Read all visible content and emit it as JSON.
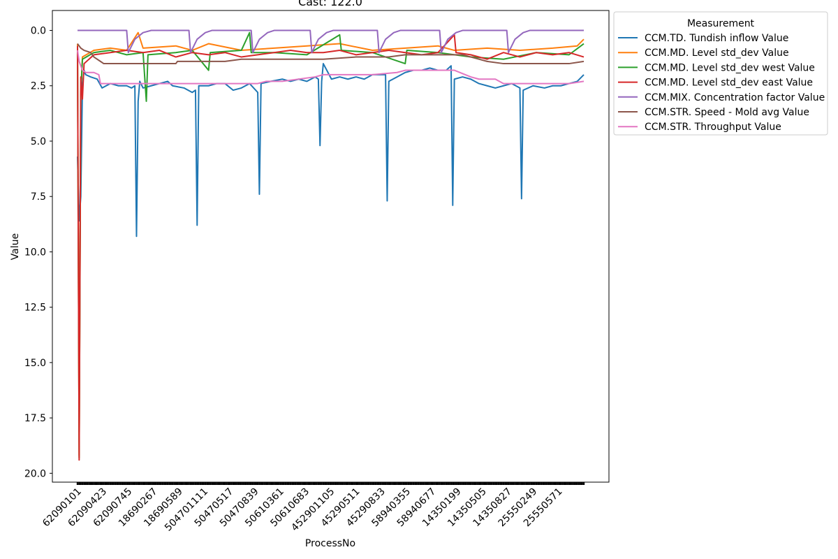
{
  "chart_data": {
    "type": "line",
    "title": "Cast: 122.0",
    "xlabel": "ProcessNo",
    "ylabel": "Value",
    "y_inverted": true,
    "ylim": [
      20.4,
      -0.9
    ],
    "yticks": [
      0.0,
      2.5,
      5.0,
      7.5,
      10.0,
      12.5,
      15.0,
      17.5,
      20.0
    ],
    "ytick_labels": [
      "0.0",
      "2.5",
      "5.0",
      "7.5",
      "10.0",
      "12.5",
      "15.0",
      "17.5",
      "20.0"
    ],
    "xtick_labels": [
      "62090101",
      "62090423",
      "62090745",
      "18690267",
      "18690589",
      "504701111",
      "50470517",
      "50470839",
      "50610361",
      "50610683",
      "452901105",
      "45290511",
      "45290833",
      "58940355",
      "58940677",
      "14350199",
      "14350505",
      "14350827",
      "25550249",
      "25550571"
    ],
    "legend": {
      "title": "Measurement",
      "placement": "outside-right-top"
    },
    "grid": false,
    "series": [
      {
        "name": "CCM.TD. Tundish inflow Value",
        "color": "#1f77b4",
        "points": [
          [
            0,
            5.7
          ],
          [
            1,
            8.6
          ],
          [
            2,
            7.5
          ],
          [
            3,
            2.5
          ],
          [
            4,
            1.8
          ],
          [
            5,
            2.0
          ],
          [
            8,
            2.1
          ],
          [
            12,
            2.2
          ],
          [
            15,
            2.6
          ],
          [
            20,
            2.4
          ],
          [
            25,
            2.5
          ],
          [
            30,
            2.5
          ],
          [
            33,
            2.6
          ],
          [
            35,
            2.5
          ],
          [
            36,
            9.3
          ],
          [
            37,
            3.2
          ],
          [
            38,
            2.3
          ],
          [
            40,
            2.6
          ],
          [
            45,
            2.5
          ],
          [
            50,
            2.4
          ],
          [
            55,
            2.3
          ],
          [
            58,
            2.5
          ],
          [
            65,
            2.6
          ],
          [
            70,
            2.8
          ],
          [
            72,
            2.7
          ],
          [
            73,
            8.8
          ],
          [
            74,
            2.5
          ],
          [
            80,
            2.5
          ],
          [
            85,
            2.4
          ],
          [
            90,
            2.4
          ],
          [
            95,
            2.7
          ],
          [
            100,
            2.6
          ],
          [
            105,
            2.4
          ],
          [
            110,
            2.8
          ],
          [
            111,
            7.4
          ],
          [
            112,
            2.4
          ],
          [
            118,
            2.3
          ],
          [
            125,
            2.2
          ],
          [
            130,
            2.3
          ],
          [
            135,
            2.2
          ],
          [
            140,
            2.3
          ],
          [
            145,
            2.1
          ],
          [
            147,
            2.2
          ],
          [
            148,
            5.2
          ],
          [
            149,
            2.3
          ],
          [
            150,
            1.5
          ],
          [
            155,
            2.2
          ],
          [
            160,
            2.1
          ],
          [
            165,
            2.2
          ],
          [
            170,
            2.1
          ],
          [
            175,
            2.2
          ],
          [
            180,
            2.0
          ],
          [
            185,
            2.0
          ],
          [
            188,
            2.0
          ],
          [
            189,
            7.7
          ],
          [
            190,
            2.3
          ],
          [
            195,
            2.1
          ],
          [
            200,
            1.9
          ],
          [
            205,
            1.8
          ],
          [
            210,
            1.8
          ],
          [
            215,
            1.7
          ],
          [
            220,
            1.8
          ],
          [
            225,
            1.8
          ],
          [
            228,
            1.6
          ],
          [
            229,
            7.9
          ],
          [
            230,
            2.2
          ],
          [
            235,
            2.1
          ],
          [
            240,
            2.2
          ],
          [
            245,
            2.4
          ],
          [
            250,
            2.5
          ],
          [
            255,
            2.6
          ],
          [
            260,
            2.5
          ],
          [
            265,
            2.4
          ],
          [
            270,
            2.6
          ],
          [
            271,
            7.6
          ],
          [
            272,
            2.7
          ],
          [
            278,
            2.5
          ],
          [
            285,
            2.6
          ],
          [
            290,
            2.5
          ],
          [
            295,
            2.5
          ],
          [
            300,
            2.4
          ],
          [
            305,
            2.3
          ],
          [
            309,
            2.0
          ]
        ]
      },
      {
        "name": "CCM.MD. Level std_dev Value",
        "color": "#ff7f0e",
        "points": [
          [
            0,
            0.6
          ],
          [
            1,
            19.2
          ],
          [
            2,
            2.8
          ],
          [
            3,
            1.2
          ],
          [
            10,
            0.9
          ],
          [
            20,
            0.8
          ],
          [
            30,
            0.9
          ],
          [
            37,
            0.1
          ],
          [
            40,
            0.8
          ],
          [
            60,
            0.7
          ],
          [
            70,
            0.9
          ],
          [
            80,
            0.6
          ],
          [
            100,
            0.9
          ],
          [
            120,
            0.8
          ],
          [
            140,
            0.7
          ],
          [
            160,
            0.6
          ],
          [
            180,
            0.9
          ],
          [
            200,
            0.8
          ],
          [
            220,
            0.7
          ],
          [
            230,
            0.9
          ],
          [
            250,
            0.8
          ],
          [
            270,
            0.9
          ],
          [
            290,
            0.8
          ],
          [
            305,
            0.7
          ],
          [
            309,
            0.4
          ]
        ]
      },
      {
        "name": "CCM.MD. Level std_dev west Value",
        "color": "#2ca02c",
        "points": [
          [
            0,
            0.7
          ],
          [
            1,
            19.3
          ],
          [
            2,
            2.9
          ],
          [
            3,
            1.3
          ],
          [
            10,
            1.0
          ],
          [
            20,
            0.9
          ],
          [
            30,
            1.1
          ],
          [
            40,
            1.0
          ],
          [
            42,
            3.2
          ],
          [
            43,
            1.1
          ],
          [
            60,
            1.0
          ],
          [
            70,
            0.9
          ],
          [
            80,
            1.8
          ],
          [
            81,
            1.0
          ],
          [
            100,
            0.9
          ],
          [
            105,
            0.1
          ],
          [
            106,
            1.0
          ],
          [
            120,
            1.0
          ],
          [
            140,
            1.1
          ],
          [
            160,
            0.2
          ],
          [
            161,
            0.9
          ],
          [
            180,
            1.0
          ],
          [
            200,
            1.5
          ],
          [
            201,
            0.9
          ],
          [
            220,
            1.0
          ],
          [
            240,
            1.2
          ],
          [
            260,
            1.3
          ],
          [
            280,
            1.0
          ],
          [
            300,
            1.1
          ],
          [
            309,
            0.6
          ]
        ]
      },
      {
        "name": "CCM.MD. Level std_dev east Value",
        "color": "#d62728",
        "points": [
          [
            0,
            0.7
          ],
          [
            1,
            19.4
          ],
          [
            2,
            2.1
          ],
          [
            3,
            3.1
          ],
          [
            4,
            1.5
          ],
          [
            10,
            1.1
          ],
          [
            20,
            1.0
          ],
          [
            30,
            0.9
          ],
          [
            40,
            1.0
          ],
          [
            50,
            0.9
          ],
          [
            60,
            1.2
          ],
          [
            70,
            1.0
          ],
          [
            80,
            1.1
          ],
          [
            90,
            1.0
          ],
          [
            100,
            1.2
          ],
          [
            110,
            1.1
          ],
          [
            120,
            1.0
          ],
          [
            130,
            0.9
          ],
          [
            140,
            1.0
          ],
          [
            150,
            1.0
          ],
          [
            160,
            0.9
          ],
          [
            170,
            1.1
          ],
          [
            180,
            1.0
          ],
          [
            190,
            0.9
          ],
          [
            200,
            1.0
          ],
          [
            210,
            1.1
          ],
          [
            220,
            1.0
          ],
          [
            230,
            0.2
          ],
          [
            231,
            1.0
          ],
          [
            240,
            1.1
          ],
          [
            250,
            1.3
          ],
          [
            260,
            1.0
          ],
          [
            270,
            1.2
          ],
          [
            280,
            1.0
          ],
          [
            290,
            1.1
          ],
          [
            300,
            1.0
          ],
          [
            309,
            1.2
          ]
        ]
      },
      {
        "name": "CCM.MIX. Concentration factor Value",
        "color": "#9467bd",
        "points": [
          [
            0,
            0.0
          ],
          [
            30,
            0.0
          ],
          [
            31,
            1.0
          ],
          [
            35,
            0.4
          ],
          [
            40,
            0.1
          ],
          [
            45,
            0.0
          ],
          [
            68,
            0.0
          ],
          [
            69,
            1.0
          ],
          [
            73,
            0.4
          ],
          [
            78,
            0.1
          ],
          [
            82,
            0.0
          ],
          [
            106,
            0.0
          ],
          [
            107,
            1.0
          ],
          [
            111,
            0.4
          ],
          [
            116,
            0.1
          ],
          [
            120,
            0.0
          ],
          [
            142,
            0.0
          ],
          [
            143,
            1.0
          ],
          [
            147,
            0.4
          ],
          [
            152,
            0.1
          ],
          [
            156,
            0.0
          ],
          [
            183,
            0.0
          ],
          [
            184,
            1.0
          ],
          [
            188,
            0.4
          ],
          [
            193,
            0.1
          ],
          [
            197,
            0.0
          ],
          [
            221,
            0.0
          ],
          [
            222,
            1.0
          ],
          [
            226,
            0.4
          ],
          [
            231,
            0.1
          ],
          [
            235,
            0.0
          ],
          [
            262,
            0.0
          ],
          [
            263,
            1.0
          ],
          [
            267,
            0.4
          ],
          [
            272,
            0.1
          ],
          [
            276,
            0.0
          ],
          [
            309,
            0.0
          ]
        ]
      },
      {
        "name": "CCM.STR. Speed - Mold avg Value",
        "color": "#8c564b",
        "points": [
          [
            0,
            0.6
          ],
          [
            2,
            0.8
          ],
          [
            4,
            0.9
          ],
          [
            8,
            1.0
          ],
          [
            10,
            1.2
          ],
          [
            14,
            1.4
          ],
          [
            16,
            1.5
          ],
          [
            60,
            1.5
          ],
          [
            61,
            1.4
          ],
          [
            80,
            1.4
          ],
          [
            90,
            1.4
          ],
          [
            100,
            1.3
          ],
          [
            130,
            1.3
          ],
          [
            150,
            1.3
          ],
          [
            170,
            1.2
          ],
          [
            190,
            1.2
          ],
          [
            200,
            1.1
          ],
          [
            225,
            1.1
          ],
          [
            235,
            1.1
          ],
          [
            245,
            1.3
          ],
          [
            250,
            1.4
          ],
          [
            260,
            1.5
          ],
          [
            300,
            1.5
          ],
          [
            309,
            1.4
          ]
        ]
      },
      {
        "name": "CCM.STR. Throughput Value",
        "color": "#e377c2",
        "points": [
          [
            0,
            0.9
          ],
          [
            1,
            1.4
          ],
          [
            3,
            1.8
          ],
          [
            5,
            1.9
          ],
          [
            10,
            1.9
          ],
          [
            13,
            2.0
          ],
          [
            14,
            2.4
          ],
          [
            20,
            2.4
          ],
          [
            60,
            2.4
          ],
          [
            90,
            2.4
          ],
          [
            110,
            2.4
          ],
          [
            115,
            2.3
          ],
          [
            125,
            2.3
          ],
          [
            145,
            2.1
          ],
          [
            150,
            2.0
          ],
          [
            160,
            2.0
          ],
          [
            180,
            2.0
          ],
          [
            195,
            1.9
          ],
          [
            200,
            1.8
          ],
          [
            220,
            1.8
          ],
          [
            230,
            1.8
          ],
          [
            240,
            2.1
          ],
          [
            245,
            2.2
          ],
          [
            255,
            2.2
          ],
          [
            260,
            2.4
          ],
          [
            280,
            2.4
          ],
          [
            300,
            2.4
          ],
          [
            309,
            2.3
          ]
        ]
      }
    ]
  }
}
